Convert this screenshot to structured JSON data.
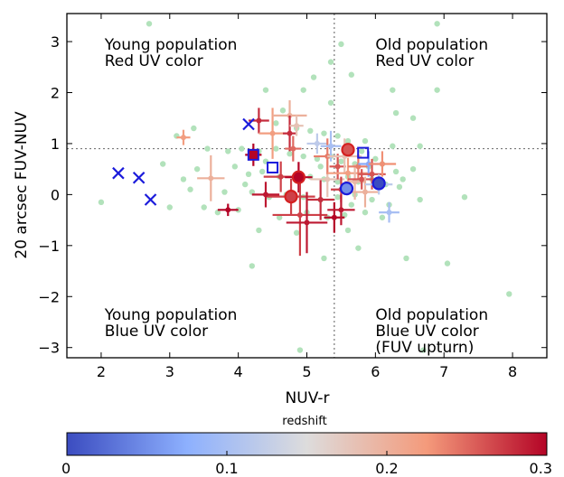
{
  "chart_data": {
    "type": "scatter",
    "title": "",
    "xlabel": "NUV-r",
    "ylabel": "20 arcsec FUV-NUV",
    "xlim": [
      1.5,
      8.5
    ],
    "ylim": [
      -3.2,
      3.55
    ],
    "xticks": [
      2,
      3,
      4,
      5,
      6,
      7,
      8
    ],
    "yticks": [
      -3,
      -2,
      -1,
      0,
      1,
      2,
      3
    ],
    "xtick_labels": [
      "2",
      "3",
      "4",
      "5",
      "6",
      "7",
      "8"
    ],
    "ytick_labels": [
      "−3",
      "−2",
      "−1",
      "0",
      "1",
      "2",
      "3"
    ],
    "grid": false,
    "reference_lines": {
      "x": 5.4,
      "y": 0.9
    },
    "quadrant_labels": [
      {
        "lines": [
          "Young population",
          "Red UV color"
        ],
        "anchor": [
          2.05,
          2.95
        ]
      },
      {
        "lines": [
          "Old population",
          "Red UV color"
        ],
        "anchor": [
          6.0,
          2.95
        ]
      },
      {
        "lines": [
          "Young population",
          "Blue UV color"
        ],
        "anchor": [
          2.05,
          -2.35
        ]
      },
      {
        "lines": [
          "Old population",
          "Blue UV color",
          "(FUV upturn)"
        ],
        "anchor": [
          6.0,
          -2.35
        ]
      }
    ],
    "colorbar": {
      "label": "redshift",
      "min": 0,
      "max": 0.3,
      "ticks": [
        0,
        0.1,
        0.2,
        0.3
      ],
      "tick_labels": [
        "0",
        "0.1",
        "0.2",
        "0.3"
      ],
      "colormap": [
        "#3b4cc0",
        "#8db0fe",
        "#dddcdc",
        "#f49a7b",
        "#b40426"
      ]
    },
    "background_color": "#b2e2bb",
    "background_points": [
      [
        2.7,
        3.35
      ],
      [
        6.9,
        3.35
      ],
      [
        5.5,
        2.95
      ],
      [
        5.35,
        2.6
      ],
      [
        5.65,
        2.35
      ],
      [
        4.4,
        2.05
      ],
      [
        4.95,
        2.05
      ],
      [
        5.1,
        2.3
      ],
      [
        6.25,
        2.05
      ],
      [
        6.9,
        2.05
      ],
      [
        5.35,
        1.8
      ],
      [
        6.3,
        1.6
      ],
      [
        4.65,
        1.65
      ],
      [
        6.55,
        1.5
      ],
      [
        3.35,
        1.3
      ],
      [
        4.55,
        1.4
      ],
      [
        4.85,
        1.3
      ],
      [
        5.05,
        1.25
      ],
      [
        5.25,
        1.2
      ],
      [
        5.45,
        1.15
      ],
      [
        5.6,
        1.05
      ],
      [
        5.85,
        1.05
      ],
      [
        6.25,
        0.95
      ],
      [
        6.65,
        0.95
      ],
      [
        3.1,
        1.15
      ],
      [
        3.55,
        0.9
      ],
      [
        3.85,
        0.85
      ],
      [
        4.05,
        0.9
      ],
      [
        4.3,
        0.85
      ],
      [
        4.55,
        0.9
      ],
      [
        4.75,
        0.8
      ],
      [
        4.95,
        0.75
      ],
      [
        5.15,
        0.7
      ],
      [
        5.35,
        0.75
      ],
      [
        5.5,
        0.65
      ],
      [
        5.7,
        0.6
      ],
      [
        5.9,
        0.55
      ],
      [
        6.1,
        0.6
      ],
      [
        6.3,
        0.45
      ],
      [
        6.55,
        0.5
      ],
      [
        2.9,
        0.6
      ],
      [
        3.4,
        0.5
      ],
      [
        3.95,
        0.55
      ],
      [
        4.15,
        0.4
      ],
      [
        4.35,
        0.45
      ],
      [
        4.6,
        0.35
      ],
      [
        4.85,
        0.3
      ],
      [
        5.05,
        0.35
      ],
      [
        5.25,
        0.3
      ],
      [
        5.45,
        0.25
      ],
      [
        5.6,
        0.35
      ],
      [
        5.75,
        0.25
      ],
      [
        5.95,
        0.3
      ],
      [
        6.15,
        0.2
      ],
      [
        6.35,
        0.15
      ],
      [
        3.3,
        0.1
      ],
      [
        3.8,
        0.05
      ],
      [
        4.2,
        0.05
      ],
      [
        4.45,
        -0.05
      ],
      [
        4.7,
        0.0
      ],
      [
        4.95,
        -0.05
      ],
      [
        5.2,
        -0.1
      ],
      [
        5.45,
        -0.05
      ],
      [
        5.7,
        0.0
      ],
      [
        5.95,
        -0.1
      ],
      [
        6.2,
        -0.2
      ],
      [
        6.65,
        -0.1
      ],
      [
        7.3,
        -0.05
      ],
      [
        2.0,
        -0.15
      ],
      [
        3.0,
        -0.25
      ],
      [
        3.5,
        -0.25
      ],
      [
        3.7,
        -0.35
      ],
      [
        4.0,
        -0.3
      ],
      [
        4.6,
        -0.45
      ],
      [
        5.0,
        -0.35
      ],
      [
        5.3,
        -0.45
      ],
      [
        5.55,
        -0.4
      ],
      [
        5.85,
        -0.35
      ],
      [
        6.1,
        -0.45
      ],
      [
        4.3,
        -0.7
      ],
      [
        4.85,
        -0.75
      ],
      [
        5.6,
        -0.7
      ],
      [
        5.25,
        -1.25
      ],
      [
        4.2,
        -1.4
      ],
      [
        5.75,
        -1.05
      ],
      [
        6.45,
        -1.25
      ],
      [
        7.05,
        -1.35
      ],
      [
        7.95,
        -1.95
      ],
      [
        6.7,
        -3.05
      ],
      [
        4.9,
        -3.05
      ],
      [
        5.8,
        0.85
      ],
      [
        6.0,
        0.7
      ],
      [
        5.2,
        0.55
      ],
      [
        4.4,
        0.65
      ],
      [
        6.4,
        0.3
      ],
      [
        5.65,
        -0.2
      ],
      [
        4.1,
        0.2
      ],
      [
        3.2,
        0.3
      ]
    ],
    "xmarkers": [
      {
        "x": 2.25,
        "y": 0.42
      },
      {
        "x": 2.55,
        "y": 0.33
      },
      {
        "x": 2.72,
        "y": -0.1
      },
      {
        "x": 4.15,
        "y": 1.38
      }
    ],
    "square_markers": [
      {
        "x": 4.22,
        "y": 0.78,
        "z": 0.3
      },
      {
        "x": 4.5,
        "y": 0.53,
        "z": 0.0
      },
      {
        "x": 5.82,
        "y": 0.82,
        "z": 0.0
      }
    ],
    "circle_markers": [
      {
        "x": 4.77,
        "y": -0.04,
        "z": 0.27
      },
      {
        "x": 4.88,
        "y": 0.34,
        "z": 0.3
      },
      {
        "x": 5.6,
        "y": 0.88,
        "z": 0.26
      },
      {
        "x": 5.58,
        "y": 0.12,
        "z": 0.05
      },
      {
        "x": 6.05,
        "y": 0.22,
        "z": 0.0
      }
    ],
    "errorbar_points": [
      {
        "x": 3.2,
        "y": 1.12,
        "xerr": 0.1,
        "yerr": 0.15,
        "z": 0.22
      },
      {
        "x": 3.6,
        "y": 0.32,
        "xerr": 0.2,
        "yerr": 0.45,
        "z": 0.2
      },
      {
        "x": 3.85,
        "y": -0.3,
        "xerr": 0.15,
        "yerr": 0.12,
        "z": 0.3
      },
      {
        "x": 4.22,
        "y": 0.78,
        "xerr": 0.12,
        "yerr": 0.22,
        "z": 0.3
      },
      {
        "x": 4.3,
        "y": 1.45,
        "xerr": 0.15,
        "yerr": 0.25,
        "z": 0.28
      },
      {
        "x": 4.5,
        "y": 1.2,
        "xerr": 0.2,
        "yerr": 0.5,
        "z": 0.22
      },
      {
        "x": 4.75,
        "y": 1.55,
        "xerr": 0.25,
        "yerr": 0.3,
        "z": 0.2
      },
      {
        "x": 4.75,
        "y": 1.2,
        "xerr": 0.1,
        "yerr": 0.35,
        "z": 0.28
      },
      {
        "x": 4.8,
        "y": 0.9,
        "xerr": 0.12,
        "yerr": 0.25,
        "z": 0.25
      },
      {
        "x": 4.85,
        "y": 1.35,
        "xerr": 0.1,
        "yerr": 0.2,
        "z": 0.18
      },
      {
        "x": 4.62,
        "y": 0.35,
        "xerr": 0.25,
        "yerr": 0.3,
        "z": 0.27
      },
      {
        "x": 4.77,
        "y": -0.04,
        "xerr": 0.35,
        "yerr": 0.35,
        "z": 0.27
      },
      {
        "x": 4.88,
        "y": 0.34,
        "xerr": 0.2,
        "yerr": 0.3,
        "z": 0.3
      },
      {
        "x": 4.4,
        "y": 0.0,
        "xerr": 0.2,
        "yerr": 0.25,
        "z": 0.29
      },
      {
        "x": 4.9,
        "y": -0.4,
        "xerr": 0.4,
        "yerr": 0.8,
        "z": 0.27
      },
      {
        "x": 5.0,
        "y": -0.55,
        "xerr": 0.3,
        "yerr": 0.6,
        "z": 0.29
      },
      {
        "x": 5.15,
        "y": 1.0,
        "xerr": 0.15,
        "yerr": 0.2,
        "z": 0.12
      },
      {
        "x": 5.2,
        "y": -0.1,
        "xerr": 0.2,
        "yerr": 0.4,
        "z": 0.28
      },
      {
        "x": 5.3,
        "y": 0.3,
        "xerr": 0.25,
        "yerr": 0.35,
        "z": 0.18
      },
      {
        "x": 5.3,
        "y": 0.75,
        "xerr": 0.2,
        "yerr": 0.35,
        "z": 0.24
      },
      {
        "x": 5.35,
        "y": 0.95,
        "xerr": 0.15,
        "yerr": 0.3,
        "z": 0.1
      },
      {
        "x": 5.4,
        "y": -0.45,
        "xerr": 0.15,
        "yerr": 0.3,
        "z": 0.3
      },
      {
        "x": 5.45,
        "y": 0.55,
        "xerr": 0.12,
        "yerr": 0.25,
        "z": 0.26
      },
      {
        "x": 5.5,
        "y": 0.1,
        "xerr": 0.15,
        "yerr": 0.25,
        "z": 0.27
      },
      {
        "x": 5.5,
        "y": -0.3,
        "xerr": 0.2,
        "yerr": 0.3,
        "z": 0.29
      },
      {
        "x": 5.55,
        "y": 0.75,
        "xerr": 0.25,
        "yerr": 0.35,
        "z": 0.18
      },
      {
        "x": 5.6,
        "y": 0.42,
        "xerr": 0.3,
        "yerr": 0.3,
        "z": 0.22
      },
      {
        "x": 5.7,
        "y": 0.25,
        "xerr": 0.15,
        "yerr": 0.35,
        "z": 0.19
      },
      {
        "x": 5.75,
        "y": 0.55,
        "xerr": 0.15,
        "yerr": 0.25,
        "z": 0.24
      },
      {
        "x": 5.8,
        "y": 0.3,
        "xerr": 0.2,
        "yerr": 0.2,
        "z": 0.26
      },
      {
        "x": 5.85,
        "y": 0.05,
        "xerr": 0.2,
        "yerr": 0.3,
        "z": 0.2
      },
      {
        "x": 5.9,
        "y": 0.6,
        "xerr": 0.15,
        "yerr": 0.25,
        "z": 0.07
      },
      {
        "x": 5.95,
        "y": 0.4,
        "xerr": 0.2,
        "yerr": 0.3,
        "z": 0.26
      },
      {
        "x": 6.05,
        "y": 0.2,
        "xerr": 0.2,
        "yerr": 0.2,
        "z": 0.12
      },
      {
        "x": 6.1,
        "y": 0.6,
        "xerr": 0.2,
        "yerr": 0.25,
        "z": 0.23
      },
      {
        "x": 6.2,
        "y": -0.35,
        "xerr": 0.15,
        "yerr": 0.2,
        "z": 0.1
      }
    ]
  }
}
